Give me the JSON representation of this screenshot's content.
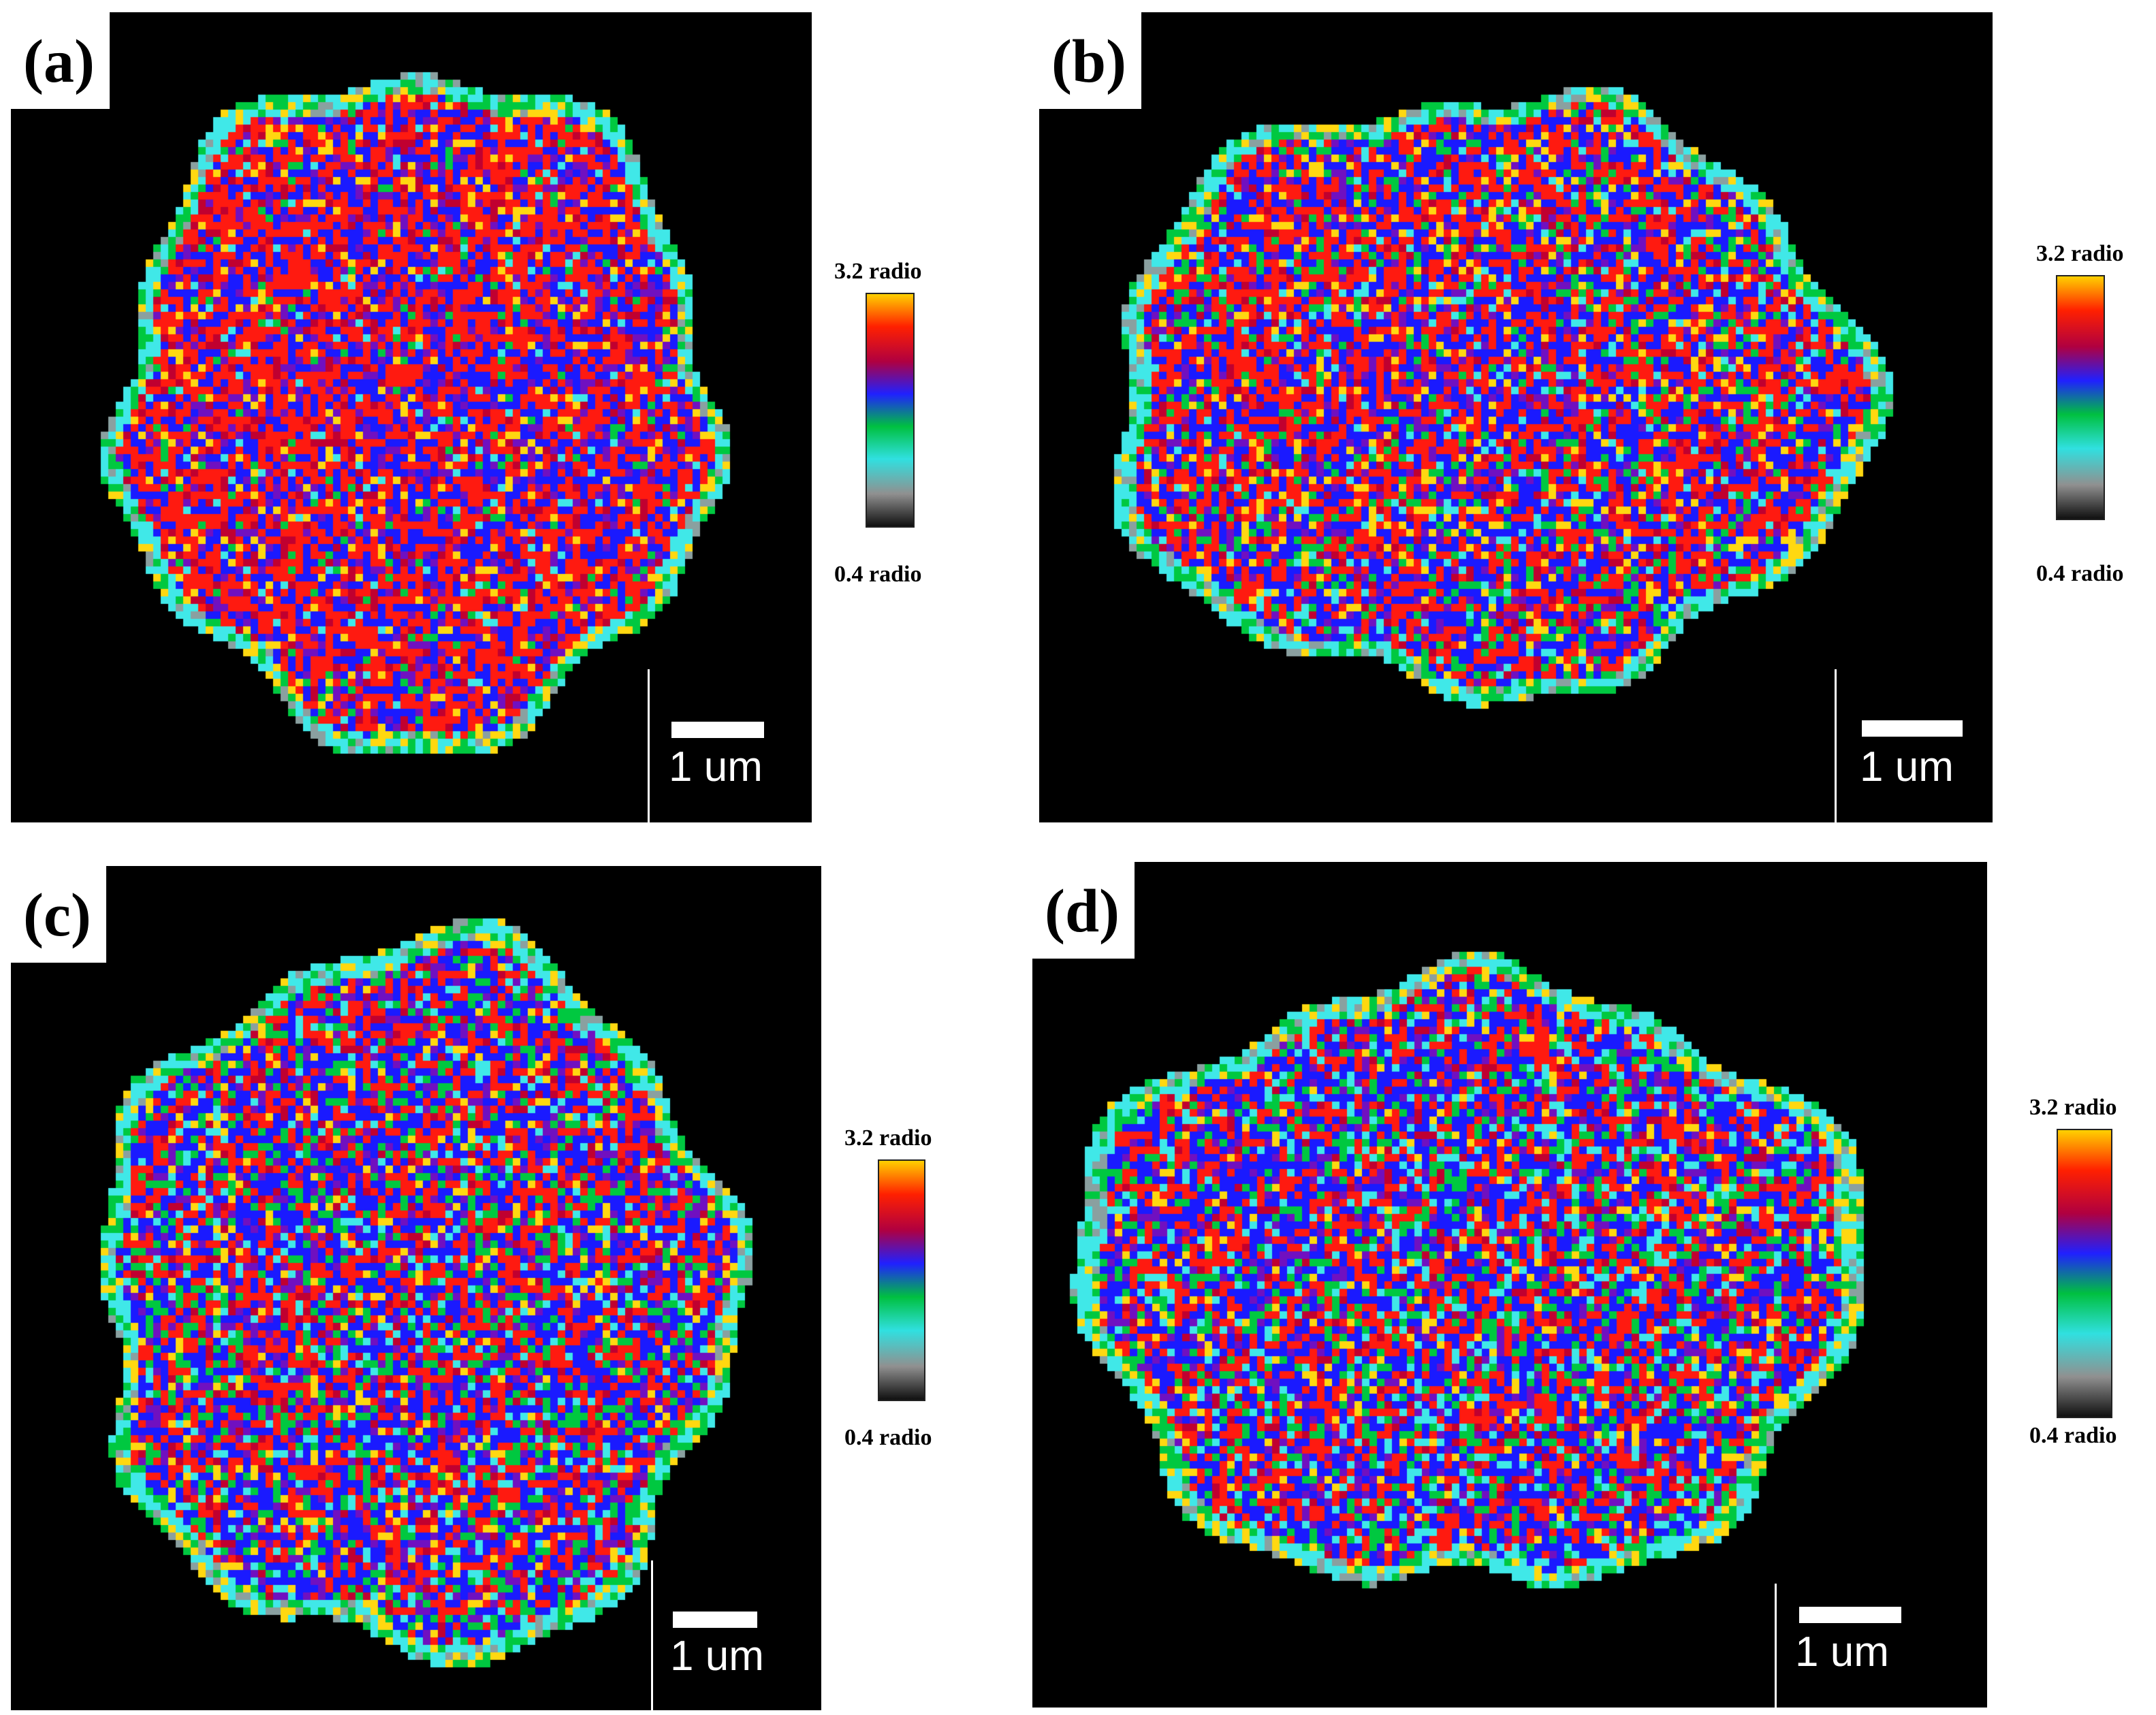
{
  "figure": {
    "panels": [
      {
        "label": "(a)",
        "scale_text": "1 um",
        "colorbar_max": "3.2 radio",
        "colorbar_min": "0.4 radio"
      },
      {
        "label": "(b)",
        "scale_text": "1 um",
        "colorbar_max": "3.2 radio",
        "colorbar_min": "0.4 radio"
      },
      {
        "label": "(c)",
        "scale_text": "1 um",
        "colorbar_max": "3.2 radio",
        "colorbar_min": "0.4 radio"
      },
      {
        "label": "(d)",
        "scale_text": "1 um",
        "colorbar_max": "3.2 radio",
        "colorbar_min": "0.4 radio"
      }
    ]
  },
  "colormap": [
    "#ffd000",
    "#ff2000",
    "#b00040",
    "#2020ff",
    "#00c040",
    "#30e0e0",
    "#909090",
    "#101010"
  ],
  "colors": {
    "background": "#000000",
    "label_box": "#ffffff",
    "scale_bar": "#ffffff"
  }
}
